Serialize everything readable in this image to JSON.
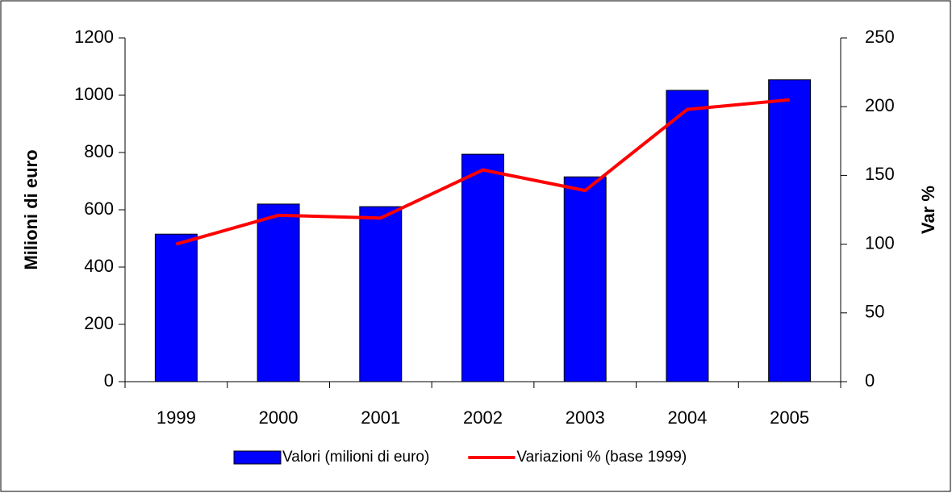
{
  "chart_data": {
    "type": "bar_line",
    "categories": [
      "1999",
      "2000",
      "2001",
      "2002",
      "2003",
      "2004",
      "2005"
    ],
    "series": [
      {
        "name": "Valori (milioni di euro)",
        "type": "bar",
        "color": "#0000ff",
        "values": [
          515,
          620,
          611,
          794,
          715,
          1017,
          1054
        ]
      },
      {
        "name": "Variazioni % (base 1999)",
        "type": "line",
        "color": "#ff0000",
        "axis": "y2",
        "values": [
          100,
          121,
          119,
          154,
          139,
          198,
          205
        ]
      }
    ],
    "ylabel": "Milioni di euro",
    "y2label": "Var %",
    "ylim": [
      0,
      1200
    ],
    "yticks": [
      0,
      200,
      400,
      600,
      800,
      1000,
      1200
    ],
    "y2lim": [
      0,
      250
    ],
    "y2ticks": [
      0,
      50,
      100,
      150,
      200,
      250
    ],
    "grid": false,
    "legend": "bottom"
  }
}
